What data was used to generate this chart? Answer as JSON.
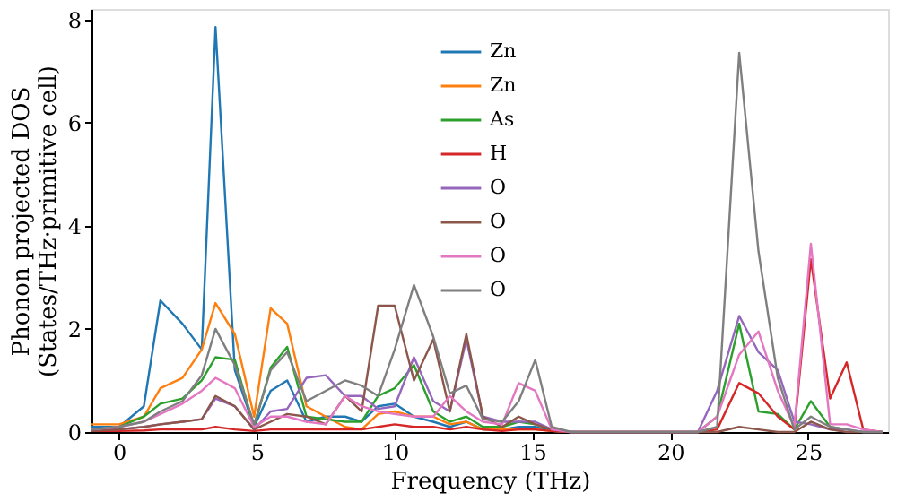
{
  "chart_data": {
    "type": "line",
    "xlabel": "Frequency (THz)",
    "ylabel": "Phonon projected DOS\n(States/THz·primitive cell)",
    "x": [
      -1,
      0,
      0.9,
      1.5,
      2.3,
      3.0,
      3.5,
      4.2,
      4.9,
      5.5,
      6.1,
      6.8,
      7.5,
      8.2,
      8.8,
      9.4,
      10.0,
      10.7,
      11.4,
      12.0,
      12.6,
      13.2,
      13.9,
      14.5,
      15.1,
      15.7,
      16.4,
      21.0,
      21.7,
      22.5,
      23.2,
      23.9,
      24.5,
      25.1,
      25.8,
      26.4,
      27.0,
      27.7
    ],
    "xlim": [
      -1,
      27.9
    ],
    "xticks": [
      0,
      5,
      10,
      15,
      20,
      25
    ],
    "ylim": [
      0,
      8.2
    ],
    "yticks": [
      0,
      2,
      4,
      6,
      8
    ],
    "grid": false,
    "legend": "top",
    "marker": "none",
    "line_style": "solid",
    "series": [
      {
        "name": "Zn",
        "color": "#1f77b4",
        "values": [
          0.1,
          0.1,
          0.5,
          2.55,
          2.1,
          1.6,
          7.85,
          1.2,
          0.1,
          0.8,
          1.0,
          0.2,
          0.3,
          0.3,
          0.2,
          0.5,
          0.55,
          0.3,
          0.2,
          0.1,
          0.2,
          0.05,
          0.05,
          0.1,
          0.1,
          0.02,
          0,
          null,
          null,
          null,
          null,
          null,
          null,
          null,
          null,
          null,
          null,
          null
        ]
      },
      {
        "name": "Zn",
        "color": "#ff7f0e",
        "values": [
          0.15,
          0.15,
          0.3,
          0.85,
          1.05,
          1.6,
          2.5,
          1.9,
          0.3,
          2.4,
          2.1,
          0.5,
          0.3,
          0.1,
          0.05,
          0.35,
          0.4,
          0.3,
          0.3,
          0.15,
          0.2,
          0.05,
          0.05,
          0.05,
          0.05,
          0.02,
          0,
          null,
          null,
          null,
          null,
          null,
          null,
          null,
          null,
          null,
          null,
          null
        ]
      },
      {
        "name": "As",
        "color": "#2ca02c",
        "values": [
          0.05,
          0.1,
          0.3,
          0.55,
          0.65,
          1.0,
          1.45,
          1.4,
          0.1,
          1.25,
          1.65,
          0.3,
          0.25,
          0.2,
          0.2,
          0.7,
          0.85,
          1.3,
          0.4,
          0.2,
          0.3,
          0.1,
          0.1,
          0.2,
          0.15,
          0.05,
          0,
          0,
          0.3,
          2.1,
          0.4,
          0.35,
          0.05,
          0.6,
          0.1,
          0.05,
          null,
          null
        ]
      },
      {
        "name": "H",
        "color": "#d62728",
        "values": [
          0.02,
          0.02,
          0.03,
          0.05,
          0.05,
          0.05,
          0.1,
          0.05,
          0.02,
          0.05,
          0.05,
          0.05,
          0.05,
          0.05,
          0.05,
          0.1,
          0.15,
          0.1,
          0.1,
          0.05,
          0.1,
          0.05,
          0.02,
          0.05,
          0.05,
          0.02,
          0,
          0,
          0.05,
          0.95,
          0.75,
          0.3,
          0.05,
          3.35,
          0.65,
          1.35,
          0.05,
          0
        ]
      },
      {
        "name": "O",
        "color": "#9467bd",
        "values": [
          0.05,
          0.05,
          0.1,
          0.15,
          0.2,
          0.25,
          0.65,
          0.5,
          0.05,
          0.4,
          0.45,
          1.05,
          1.1,
          0.7,
          0.7,
          0.45,
          0.5,
          1.45,
          0.6,
          0.4,
          1.8,
          0.3,
          0.2,
          0.2,
          0.2,
          0.05,
          0,
          0,
          0.8,
          2.25,
          1.55,
          1.2,
          0.2,
          0.15,
          0.05,
          0.05,
          0,
          0
        ]
      },
      {
        "name": "O",
        "color": "#8c564b",
        "values": [
          0.02,
          0.05,
          0.1,
          0.15,
          0.2,
          0.25,
          0.7,
          0.5,
          0.05,
          0.2,
          0.35,
          0.3,
          0.15,
          0.7,
          0.4,
          2.45,
          2.45,
          1.0,
          1.8,
          0.4,
          1.9,
          0.3,
          0.1,
          0.3,
          0.15,
          0.05,
          0,
          0,
          0,
          0.1,
          0.05,
          0,
          0,
          0.2,
          0.05,
          0,
          0,
          0
        ]
      },
      {
        "name": "O",
        "color": "#e377c2",
        "values": [
          0.05,
          0.1,
          0.2,
          0.35,
          0.55,
          0.8,
          1.05,
          0.85,
          0.1,
          0.3,
          0.3,
          0.2,
          0.15,
          0.7,
          0.5,
          0.4,
          0.35,
          0.3,
          0.3,
          0.7,
          0.4,
          0.2,
          0.15,
          0.95,
          0.8,
          0.05,
          0,
          0,
          0.3,
          1.5,
          1.95,
          0.8,
          0.1,
          3.65,
          0.15,
          0.15,
          0.05,
          0
        ]
      },
      {
        "name": "O",
        "color": "#7f7f7f",
        "values": [
          0.05,
          0.1,
          0.2,
          0.4,
          0.6,
          1.1,
          2.0,
          1.3,
          0.15,
          1.2,
          1.55,
          0.6,
          0.8,
          1.0,
          0.9,
          0.7,
          1.6,
          2.85,
          1.85,
          0.75,
          0.9,
          0.25,
          0.2,
          0.6,
          1.4,
          0.1,
          0,
          0,
          0.1,
          7.35,
          3.5,
          1.05,
          0.05,
          0.3,
          0.1,
          0.05,
          0,
          0
        ]
      }
    ]
  }
}
